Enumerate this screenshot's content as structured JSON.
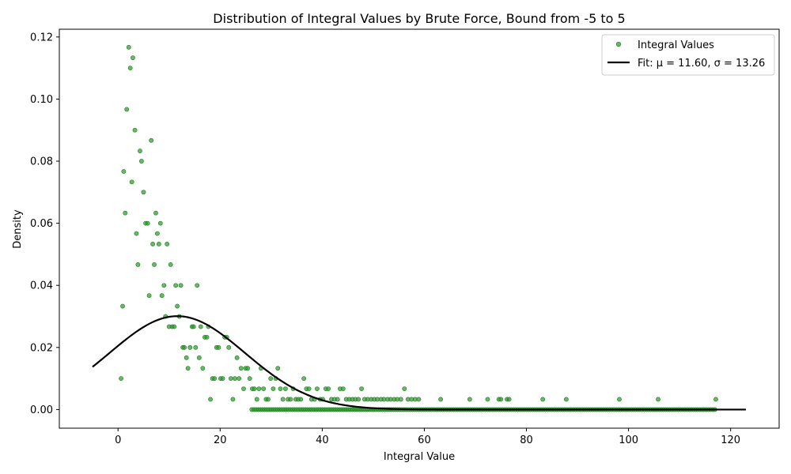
{
  "chart_data": {
    "type": "scatter",
    "title": "Distribution of Integral Values by Brute Force, Bound from -5 to 5",
    "xlabel": "Integral Value",
    "ylabel": "Density",
    "xlim": [
      -11.5,
      129.5
    ],
    "ylim": [
      -0.006,
      0.1225
    ],
    "xticks": [
      0,
      20,
      40,
      60,
      80,
      100,
      120
    ],
    "yticks": [
      0.0,
      0.02,
      0.04,
      0.06,
      0.08,
      0.1,
      0.12
    ],
    "xtick_labels": [
      "0",
      "20",
      "40",
      "60",
      "80",
      "100",
      "120"
    ],
    "ytick_labels": [
      "0.00",
      "0.02",
      "0.04",
      "0.06",
      "0.08",
      "0.10",
      "0.12"
    ],
    "grid": false,
    "legend_position": "top-right",
    "colors": {
      "scatter": "#2a9a2a",
      "fit": "#000000"
    },
    "legend": [
      {
        "label": "Integral Values",
        "kind": "marker"
      },
      {
        "label": "Fit: μ = 11.60, σ = 13.26",
        "kind": "line"
      }
    ],
    "fit": {
      "mu": 11.6,
      "sigma": 13.26,
      "x_start": -5,
      "x_end": 123
    },
    "series": [
      {
        "name": "Integral Values",
        "type": "scatter",
        "x": [
          0.6,
          0.9,
          1.1,
          1.4,
          1.7,
          2.1,
          2.4,
          2.7,
          2.9,
          3.3,
          3.6,
          3.9,
          4.3,
          4.6,
          5.0,
          5.4,
          5.8,
          6.1,
          6.5,
          6.8,
          7.1,
          7.4,
          7.7,
          8.0,
          8.3,
          8.6,
          9.0,
          9.3,
          9.6,
          10.0,
          10.3,
          10.6,
          11.0,
          11.3,
          11.6,
          12.0,
          12.3,
          12.7,
          13.0,
          13.4,
          13.7,
          14.1,
          14.5,
          14.8,
          15.2,
          15.5,
          15.9,
          16.2,
          16.6,
          17.0,
          17.4,
          17.7,
          18.1,
          18.5,
          18.9,
          19.3,
          19.7,
          20.1,
          20.5,
          20.9,
          21.3,
          21.7,
          22.1,
          22.5,
          22.9,
          23.3,
          23.7,
          24.1,
          24.6,
          25.0,
          25.4,
          25.8,
          26.3,
          26.7,
          27.2,
          27.6,
          28.0,
          28.5,
          29.0,
          29.4,
          29.9,
          30.4,
          30.9,
          31.3,
          31.8,
          32.3,
          32.8,
          33.3,
          33.8,
          34.3,
          34.8,
          35.3,
          35.8,
          36.4,
          36.9,
          37.4,
          37.9,
          38.5,
          39.0,
          39.6,
          40.1,
          40.7,
          41.2,
          41.8,
          42.4,
          43.0,
          43.5,
          44.1,
          44.7,
          45.3,
          45.9,
          46.5,
          47.1,
          47.7,
          48.3,
          48.9,
          49.6,
          50.2,
          50.8,
          51.5,
          52.1,
          52.8,
          53.4,
          54.1,
          54.7,
          55.4,
          56.1,
          56.8,
          57.5,
          58.2,
          58.9,
          63.2,
          68.9,
          72.4,
          74.6,
          75.0,
          76.2,
          76.6,
          83.2,
          87.8,
          98.2,
          105.8,
          117.1
        ],
        "y": [
          0.01,
          0.0333,
          0.0767,
          0.0633,
          0.0967,
          0.1167,
          0.11,
          0.0733,
          0.1133,
          0.09,
          0.0567,
          0.0467,
          0.0833,
          0.08,
          0.07,
          0.06,
          0.06,
          0.0367,
          0.0867,
          0.0533,
          0.0467,
          0.0633,
          0.0567,
          0.0533,
          0.06,
          0.0367,
          0.04,
          0.03,
          0.0533,
          0.0267,
          0.0467,
          0.0267,
          0.0267,
          0.04,
          0.0333,
          0.03,
          0.04,
          0.02,
          0.02,
          0.0167,
          0.0133,
          0.02,
          0.0267,
          0.0267,
          0.02,
          0.04,
          0.0167,
          0.0267,
          0.0133,
          0.0233,
          0.0233,
          0.0267,
          0.0033,
          0.01,
          0.01,
          0.02,
          0.02,
          0.01,
          0.01,
          0.0233,
          0.0233,
          0.02,
          0.01,
          0.0033,
          0.01,
          0.0167,
          0.01,
          0.0133,
          0.0067,
          0.0133,
          0.0133,
          0.01,
          0.0067,
          0.0067,
          0.0033,
          0.0067,
          0.0133,
          0.0067,
          0.0033,
          0.0033,
          0.01,
          0.0067,
          0.01,
          0.0133,
          0.0067,
          0.0033,
          0.0067,
          0.0033,
          0.0033,
          0.0067,
          0.0033,
          0.0033,
          0.0033,
          0.01,
          0.0067,
          0.0067,
          0.0033,
          0.0033,
          0.0067,
          0.0033,
          0.0033,
          0.0067,
          0.0067,
          0.0033,
          0.0033,
          0.0033,
          0.0067,
          0.0067,
          0.0033,
          0.0033,
          0.0033,
          0.0033,
          0.0033,
          0.0067,
          0.0033,
          0.0033,
          0.0033,
          0.0033,
          0.0033,
          0.0033,
          0.0033,
          0.0033,
          0.0033,
          0.0033,
          0.0033,
          0.0033,
          0.0067,
          0.0033,
          0.0033,
          0.0033,
          0.0033,
          0.0033,
          0.0033,
          0.0033,
          0.0033,
          0.0033,
          0.0033,
          0.0033,
          0.0033,
          0.0033,
          0.0033,
          0.0033,
          0.0033
        ],
        "zero_x_start": 26.2,
        "zero_x_end": 117.2,
        "zero_x_step": 0.42
      }
    ]
  }
}
